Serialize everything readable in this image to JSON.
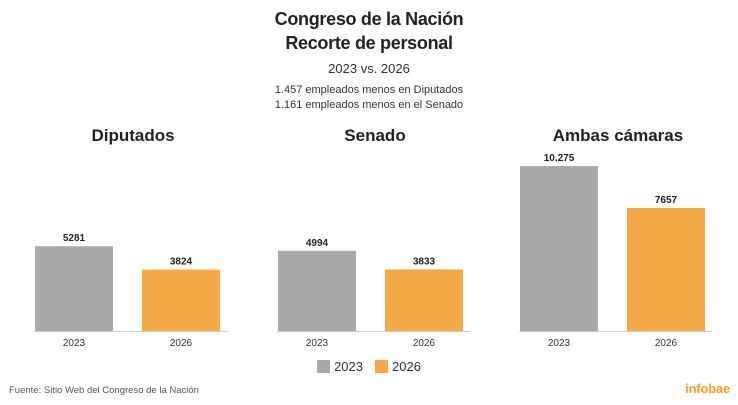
{
  "header": {
    "title_line1": "Congreso de la Nación",
    "title_line2": "Recorte de personal",
    "subtitle": "2023 vs. 2026",
    "note1": "1.457 empleados menos en Diputados",
    "note2": "1.161 empleados menos en el Senado"
  },
  "legend": [
    {
      "label": "2023",
      "color": "#a9a9a9"
    },
    {
      "label": "2026",
      "color": "#f5a847"
    }
  ],
  "source": "Fuente: Sitio Web del Congreso de la Nación",
  "brand": "infobae",
  "colors": {
    "y2023": "#a9a9a9",
    "y2026": "#f5a847",
    "axis": "#cccccc"
  },
  "chart_data": [
    {
      "type": "bar",
      "title": "Diputados",
      "categories": [
        "2023",
        "2026"
      ],
      "values": [
        5281,
        3824
      ],
      "labels": [
        "5281",
        "3824"
      ],
      "ylim": [
        0,
        10275
      ]
    },
    {
      "type": "bar",
      "title": "Senado",
      "categories": [
        "2023",
        "2026"
      ],
      "values": [
        4994,
        3833
      ],
      "labels": [
        "4994",
        "3833"
      ],
      "ylim": [
        0,
        10275
      ]
    },
    {
      "type": "bar",
      "title": "Ambas cámaras",
      "categories": [
        "2023",
        "2026"
      ],
      "values": [
        10275,
        7657
      ],
      "labels": [
        "10.275",
        "7657"
      ],
      "ylim": [
        0,
        10275
      ]
    }
  ]
}
